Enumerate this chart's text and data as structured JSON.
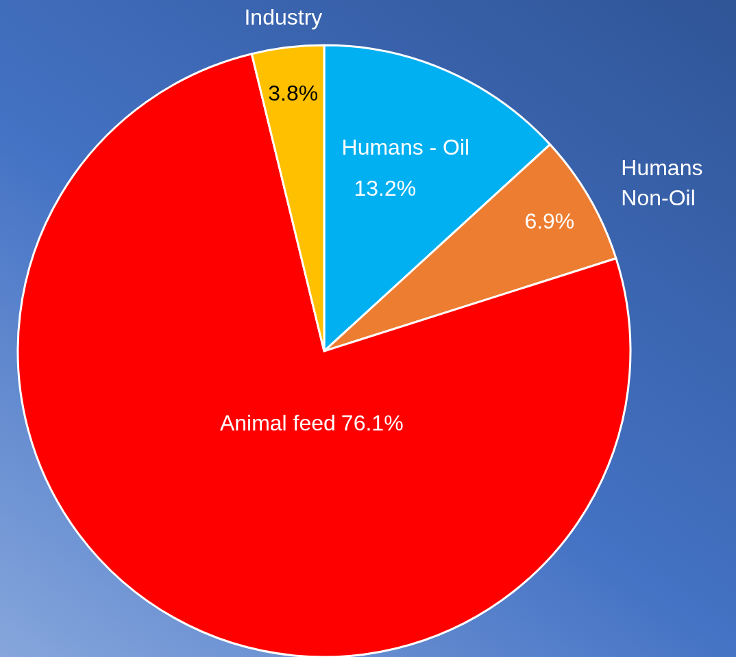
{
  "chart_data": {
    "type": "pie",
    "categories": [
      "Humans - Oil",
      "Humans Non-Oil",
      "Animal feed",
      "Industry"
    ],
    "values": [
      13.2,
      6.9,
      76.1,
      3.8
    ],
    "value_labels": [
      "13.2%",
      "6.9%",
      "76.1%",
      "3.8%"
    ],
    "colors": [
      "#00b0f0",
      "#ed7d31",
      "#ff0000",
      "#ffc000"
    ]
  }
}
